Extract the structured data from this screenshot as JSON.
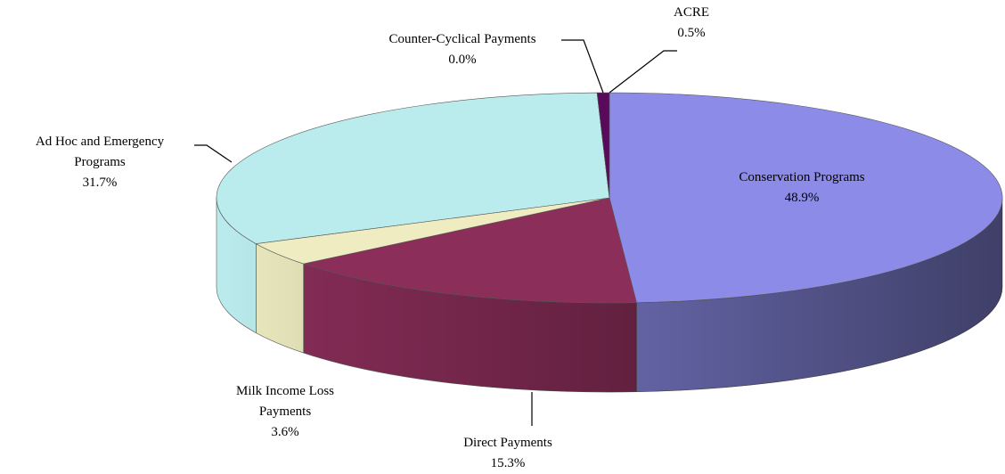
{
  "chart_data": {
    "type": "pie",
    "categories": [
      "Conservation Programs",
      "Direct Payments",
      "Milk Income Loss Payments",
      "Ad Hoc and Emergency Programs",
      "Counter-Cyclical Payments",
      "ACRE"
    ],
    "values": [
      48.9,
      15.3,
      3.6,
      31.7,
      0.0,
      0.5
    ],
    "value_labels": [
      "48.9%",
      "15.3%",
      "3.6%",
      "31.7%",
      "0.0%",
      "0.5%"
    ],
    "colors": [
      "#8c8ce8",
      "#8b2e5a",
      "#eeecc0",
      "#bbeced",
      "#5a0a5a",
      "#5a0a5a"
    ]
  }
}
